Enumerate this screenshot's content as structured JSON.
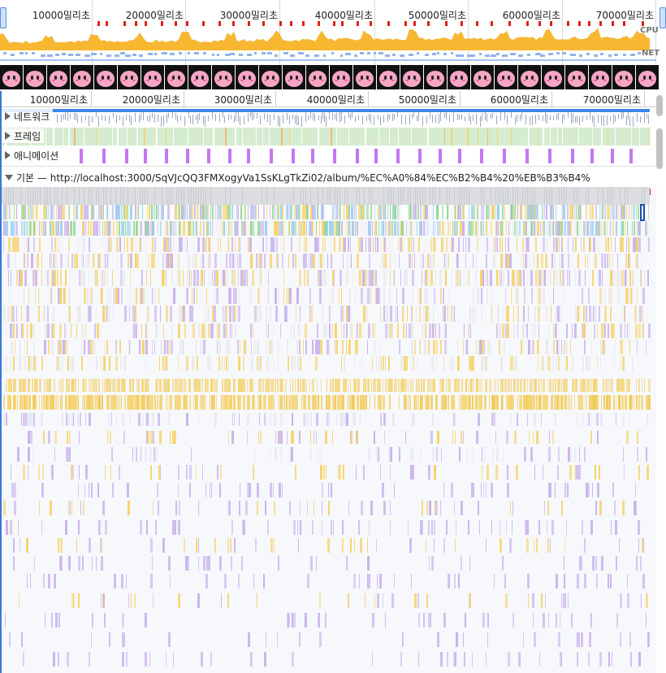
{
  "overview": {
    "tick_labels": [
      "10000밀리초",
      "20000밀리초",
      "30000밀리초",
      "40000밀리초",
      "50000밀리초",
      "60000밀리초",
      "70000밀리초"
    ],
    "cpu_label": "CPU",
    "net_label": "NET",
    "screenshot_icon": "pink-round-face-icon"
  },
  "ruler": {
    "tick_labels": [
      "10000밀리초",
      "20000밀리초",
      "30000밀리초",
      "40000밀리초",
      "50000밀리초",
      "60000밀리초",
      "70000밀리초"
    ]
  },
  "tracks": {
    "network": "네트워크",
    "frames": "프레임",
    "animations": "애니메이션",
    "main": "기본 — http://localhost:3000/SqVJcQQ3FMXogyVa1SsKLgTkZi02/album/%EC%A0%84%EC%B2%B4%20%EB%B3%B4%"
  },
  "colors": {
    "accent": "#1a73e8",
    "cpu_fill": "#f7b731",
    "cpu_gray": "#b8b8b8",
    "net_fill": "#8fb4ec",
    "frame_bg": "#d5ecd0",
    "animation": "#c278f0",
    "long_task": "#e01e1e",
    "scripting": "#f6d36b",
    "rendering": "#c9b3ec",
    "painting": "#8fd58f",
    "system": "#d9d9d9"
  }
}
